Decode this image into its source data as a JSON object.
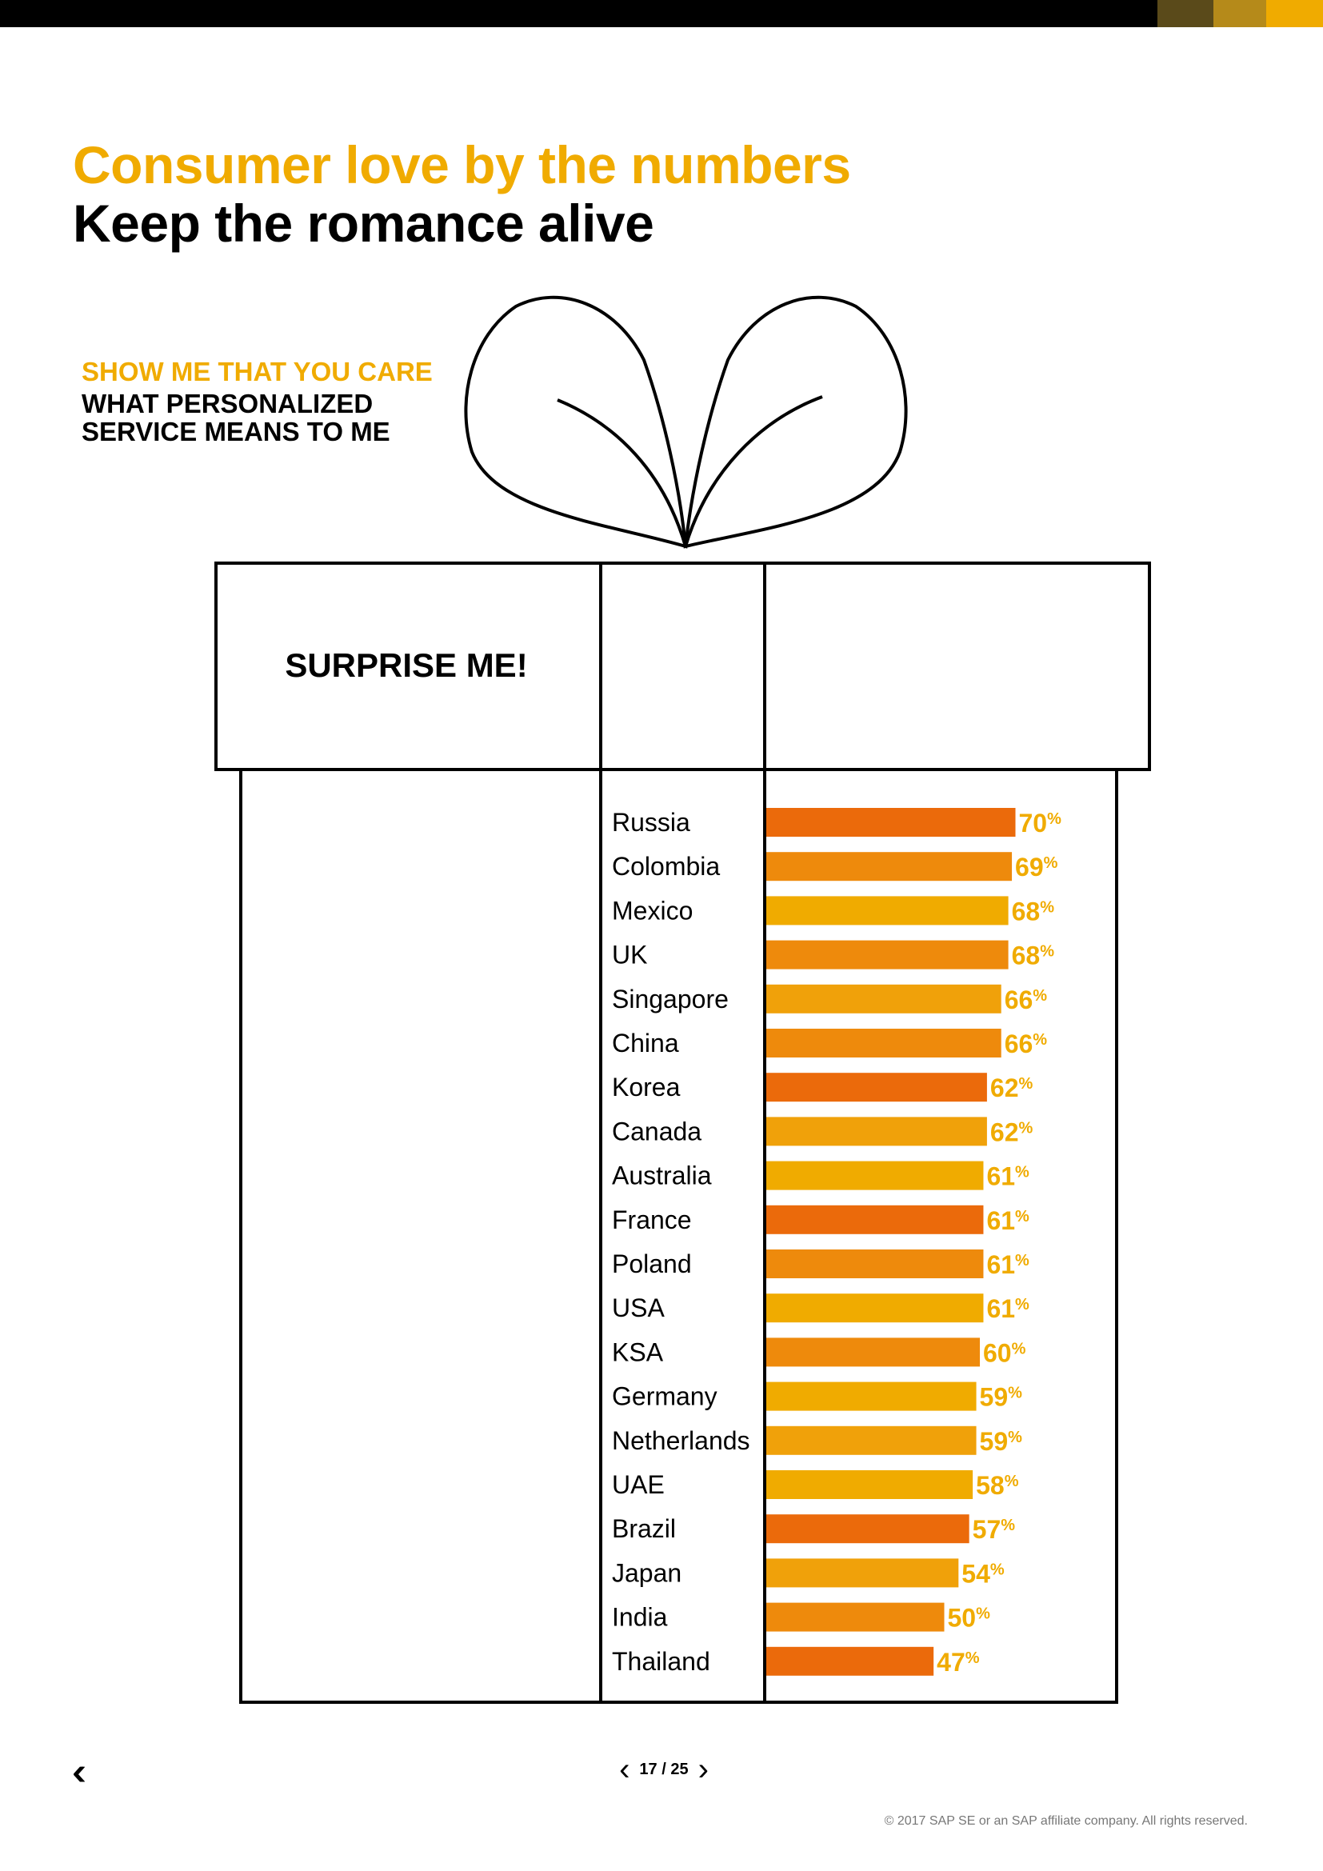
{
  "header": {
    "title": "Consumer love by the numbers",
    "subtitle": "Keep the romance alive",
    "accent_color": "#f0ab00",
    "swatches": [
      "#5a4a1a",
      "#b58a1a",
      "#f0ab00"
    ]
  },
  "section": {
    "eyebrow": "SHOW ME THAT YOU CARE",
    "heading": "WHAT PERSONALIZED SERVICE MEANS TO ME",
    "box_label": "SURPRISE ME!"
  },
  "chart_data": {
    "type": "bar",
    "orientation": "horizontal",
    "categories": [
      "Russia",
      "Colombia",
      "Mexico",
      "UK",
      "Singapore",
      "China",
      "Korea",
      "Canada",
      "Australia",
      "France",
      "Poland",
      "USA",
      "KSA",
      "Germany",
      "Netherlands",
      "UAE",
      "Brazil",
      "Japan",
      "India",
      "Thailand"
    ],
    "values": [
      70,
      69,
      68,
      68,
      66,
      66,
      62,
      62,
      61,
      61,
      61,
      61,
      60,
      59,
      59,
      58,
      57,
      54,
      50,
      47
    ],
    "value_labels": [
      "70%",
      "69%",
      "68%",
      "68%",
      "66%",
      "66%",
      "62%",
      "62%",
      "61%",
      "61%",
      "61%",
      "61%",
      "60%",
      "59%",
      "59%",
      "58%",
      "57%",
      "54%",
      "50%",
      "47%"
    ],
    "bar_colors": [
      "#eb6a0b",
      "#ee8a0c",
      "#f0ab00",
      "#ee8a0c",
      "#f0a10a",
      "#ee8a0c",
      "#eb6a0b",
      "#f0a10a",
      "#f0ab00",
      "#eb6a0b",
      "#ee8a0c",
      "#f0ab00",
      "#ee8a0c",
      "#f0ab00",
      "#f0a10a",
      "#f0ab00",
      "#eb6a0b",
      "#f0a10a",
      "#ee8a0c",
      "#eb6a0b"
    ],
    "label_color": "#f0ab00",
    "unit": "%"
  },
  "footer": {
    "back_icon": "double-chevron-left-icon",
    "prev_icon": "chevron-left-icon",
    "next_icon": "chevron-right-icon",
    "page": "17 / 25",
    "copyright": "© 2017 SAP SE or an SAP affiliate company. All rights reserved."
  }
}
